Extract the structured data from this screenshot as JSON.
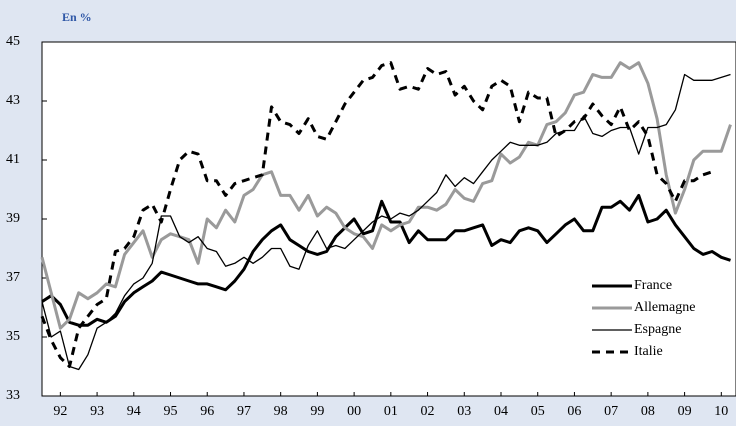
{
  "chart_data": {
    "type": "line",
    "unit_label": "En %",
    "x": [
      1992,
      1992.25,
      1992.5,
      1992.75,
      1993,
      1993.25,
      1993.5,
      1993.75,
      1994,
      1994.25,
      1994.5,
      1994.75,
      1995,
      1995.25,
      1995.5,
      1995.75,
      1996,
      1996.25,
      1996.5,
      1996.75,
      1997,
      1997.25,
      1997.5,
      1997.75,
      1998,
      1998.25,
      1998.5,
      1998.75,
      1999,
      1999.25,
      1999.5,
      1999.75,
      2000,
      2000.25,
      2000.5,
      2000.75,
      2001,
      2001.25,
      2001.5,
      2001.75,
      2002,
      2002.25,
      2002.5,
      2002.75,
      2003,
      2003.25,
      2003.5,
      2003.75,
      2004,
      2004.25,
      2004.5,
      2004.75,
      2005,
      2005.25,
      2005.5,
      2005.75,
      2006,
      2006.25,
      2006.5,
      2006.75,
      2007,
      2007.25,
      2007.5,
      2007.75,
      2008,
      2008.25,
      2008.5,
      2008.75,
      2009,
      2009.25,
      2009.5,
      2009.75,
      2010,
      2010.25,
      2010.5,
      2010.75
    ],
    "series": [
      {
        "name": "France",
        "color": "#000000",
        "linewidth": 3,
        "dashed": false,
        "values": [
          36.2,
          36.4,
          36.1,
          35.5,
          35.4,
          35.4,
          35.6,
          35.5,
          35.7,
          36.2,
          36.5,
          36.7,
          36.9,
          37.2,
          37.1,
          37.0,
          36.9,
          36.8,
          36.8,
          36.7,
          36.6,
          36.9,
          37.3,
          37.9,
          38.3,
          38.6,
          38.8,
          38.3,
          38.1,
          37.9,
          37.8,
          37.9,
          38.4,
          38.7,
          39.0,
          38.5,
          38.6,
          39.6,
          38.9,
          38.9,
          38.2,
          38.6,
          38.3,
          38.3,
          38.3,
          38.6,
          38.6,
          38.7,
          38.8,
          38.1,
          38.3,
          38.2,
          38.6,
          38.7,
          38.6,
          38.2,
          38.5,
          38.8,
          39.0,
          38.6,
          38.6,
          39.4,
          39.4,
          39.6,
          39.3,
          39.8,
          38.9,
          39.0,
          39.3,
          38.8,
          38.4,
          38.0,
          37.8,
          37.9,
          37.7,
          37.6
        ]
      },
      {
        "name": "Allemagne",
        "color": "#9a9a9a",
        "linewidth": 3,
        "dashed": false,
        "values": [
          37.7,
          36.5,
          35.3,
          35.6,
          36.5,
          36.3,
          36.5,
          36.8,
          36.7,
          37.8,
          38.2,
          38.6,
          37.7,
          38.3,
          38.5,
          38.4,
          38.3,
          37.5,
          39.0,
          38.7,
          39.3,
          38.9,
          39.8,
          40.0,
          40.5,
          40.6,
          39.8,
          39.8,
          39.3,
          39.8,
          39.1,
          39.4,
          39.2,
          38.7,
          38.5,
          38.4,
          38.0,
          38.8,
          38.6,
          38.8,
          38.9,
          39.4,
          39.4,
          39.3,
          39.5,
          40.0,
          39.7,
          39.6,
          40.2,
          40.3,
          41.2,
          40.9,
          41.1,
          41.6,
          41.5,
          42.2,
          42.3,
          42.6,
          43.2,
          43.3,
          43.9,
          43.8,
          43.8,
          44.3,
          44.1,
          44.3,
          43.6,
          42.4,
          40.5,
          39.2,
          40.0,
          41.0,
          41.3,
          41.3,
          41.3,
          42.2
        ]
      },
      {
        "name": "Espagne",
        "color": "#000000",
        "linewidth": 1.3,
        "dashed": false,
        "values": [
          36.2,
          35.0,
          35.2,
          34.0,
          33.9,
          34.4,
          35.3,
          35.5,
          35.8,
          36.4,
          36.8,
          37.0,
          37.5,
          39.1,
          39.1,
          38.4,
          38.2,
          38.4,
          38.0,
          37.9,
          37.4,
          37.5,
          37.7,
          37.5,
          37.7,
          38.0,
          38.0,
          37.4,
          37.3,
          38.1,
          38.6,
          38.0,
          38.1,
          38.0,
          38.3,
          38.6,
          38.9,
          39.1,
          39.0,
          39.2,
          39.1,
          39.3,
          39.6,
          39.9,
          40.5,
          40.1,
          40.4,
          40.2,
          40.6,
          41.0,
          41.3,
          41.6,
          41.5,
          41.5,
          41.5,
          41.6,
          41.9,
          42.0,
          42.0,
          42.5,
          41.9,
          41.8,
          42.0,
          42.1,
          42.1,
          41.2,
          42.1,
          42.1,
          42.2,
          42.7,
          43.9,
          43.7,
          43.7,
          43.7,
          43.8,
          43.9
        ]
      },
      {
        "name": "Italie",
        "color": "#000000",
        "linewidth": 3,
        "dashed": true,
        "values": [
          35.7,
          34.9,
          34.3,
          34.0,
          35.3,
          35.7,
          36.1,
          36.3,
          37.9,
          38.0,
          38.4,
          39.3,
          39.5,
          38.9,
          40.0,
          41.0,
          41.3,
          41.2,
          40.3,
          40.3,
          39.8,
          40.2,
          40.3,
          40.4,
          40.5,
          42.8,
          42.3,
          42.2,
          41.9,
          42.4,
          41.8,
          41.7,
          42.3,
          42.9,
          43.3,
          43.7,
          43.8,
          44.2,
          44.3,
          43.4,
          43.5,
          43.4,
          44.1,
          43.9,
          44.0,
          43.2,
          43.5,
          43.0,
          42.7,
          43.5,
          43.7,
          43.5,
          42.3,
          43.3,
          43.1,
          43.1,
          41.8,
          42.0,
          42.3,
          42.4,
          42.9,
          42.5,
          42.2,
          42.8,
          42.0,
          42.3,
          41.8,
          40.5,
          40.2,
          39.6,
          40.3,
          40.3,
          40.5,
          40.6,
          null,
          null
        ]
      }
    ],
    "xlim": [
      1992,
      2010.9
    ],
    "xticks": [
      {
        "value": 1992.5,
        "label": "92"
      },
      {
        "value": 1993.5,
        "label": "93"
      },
      {
        "value": 1994.5,
        "label": "94"
      },
      {
        "value": 1995.5,
        "label": "95"
      },
      {
        "value": 1996.5,
        "label": "96"
      },
      {
        "value": 1997.5,
        "label": "97"
      },
      {
        "value": 1998.5,
        "label": "98"
      },
      {
        "value": 1999.5,
        "label": "99"
      },
      {
        "value": 2000.5,
        "label": "00"
      },
      {
        "value": 2001.5,
        "label": "01"
      },
      {
        "value": 2002.5,
        "label": "02"
      },
      {
        "value": 2003.5,
        "label": "03"
      },
      {
        "value": 2004.5,
        "label": "04"
      },
      {
        "value": 2005.5,
        "label": "05"
      },
      {
        "value": 2006.5,
        "label": "06"
      },
      {
        "value": 2007.5,
        "label": "07"
      },
      {
        "value": 2008.5,
        "label": "08"
      },
      {
        "value": 2009.5,
        "label": "09"
      },
      {
        "value": 2010.5,
        "label": "10"
      }
    ],
    "ylim": [
      33,
      45
    ],
    "yticks": [
      33,
      35,
      37,
      39,
      41,
      43,
      45
    ],
    "legend": "lower right"
  }
}
